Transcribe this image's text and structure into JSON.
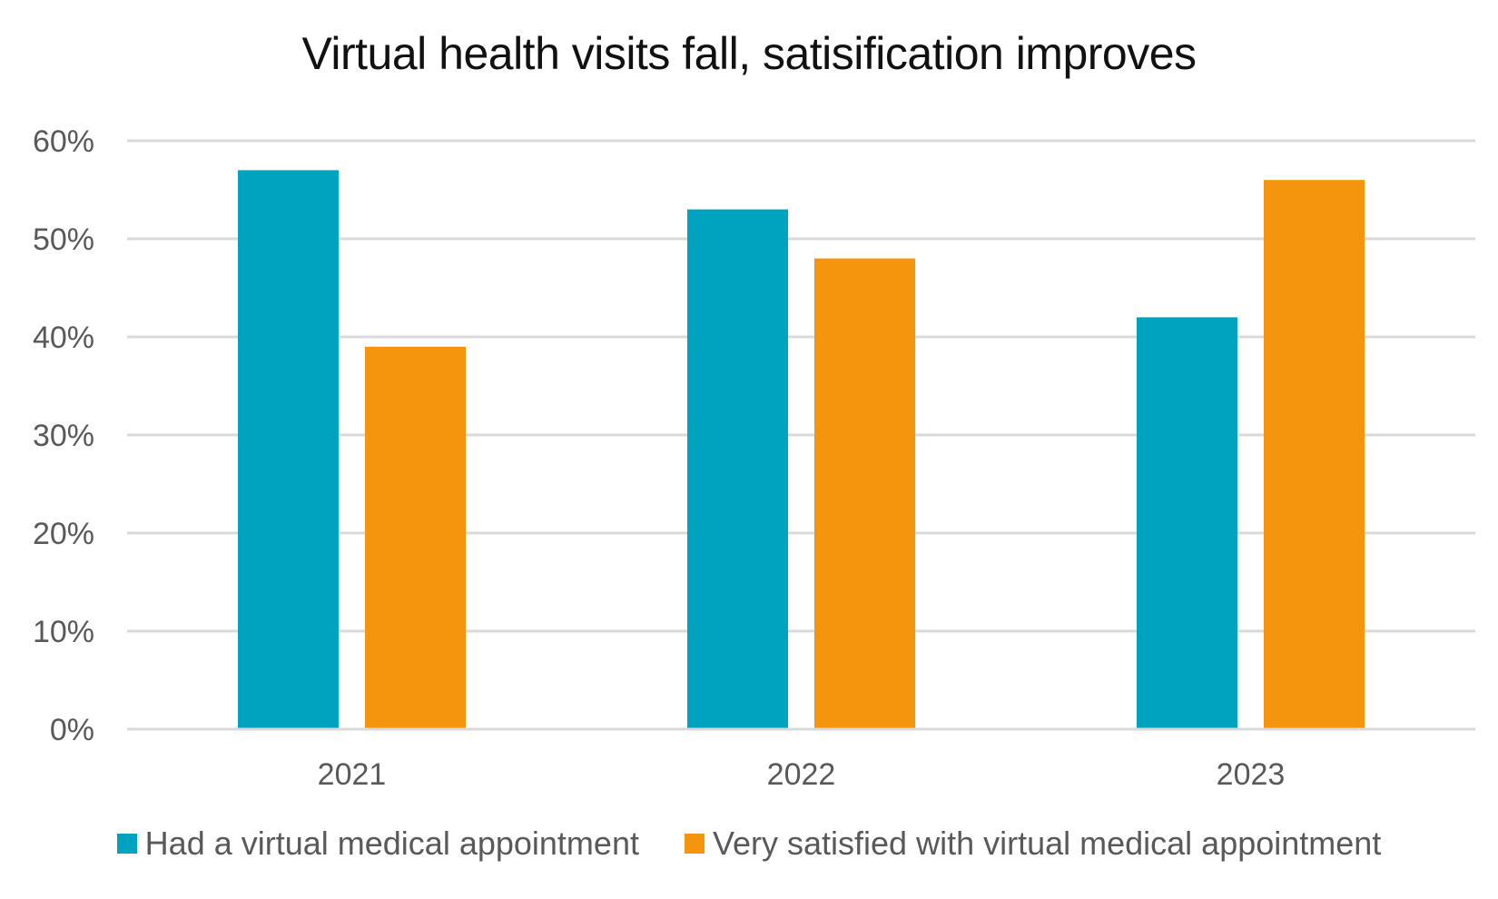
{
  "chart_data": {
    "type": "bar",
    "title": "Virtual health visits fall, satisification improves",
    "categories": [
      "2021",
      "2022",
      "2023"
    ],
    "series": [
      {
        "name": "Had a virtual medical appointment",
        "color": "#00A3BF",
        "values": [
          57,
          53,
          42
        ]
      },
      {
        "name": "Very satisfied with virtual medical appointment",
        "color": "#F5950E",
        "values": [
          39,
          48,
          56
        ]
      }
    ],
    "ylim": [
      0,
      60
    ],
    "yticks": [
      0,
      10,
      20,
      30,
      40,
      50,
      60
    ],
    "ytick_labels": [
      "0%",
      "10%",
      "20%",
      "30%",
      "40%",
      "50%",
      "60%"
    ],
    "xlabel": "",
    "ylabel": "",
    "grid": true,
    "legend_position": "bottom"
  }
}
